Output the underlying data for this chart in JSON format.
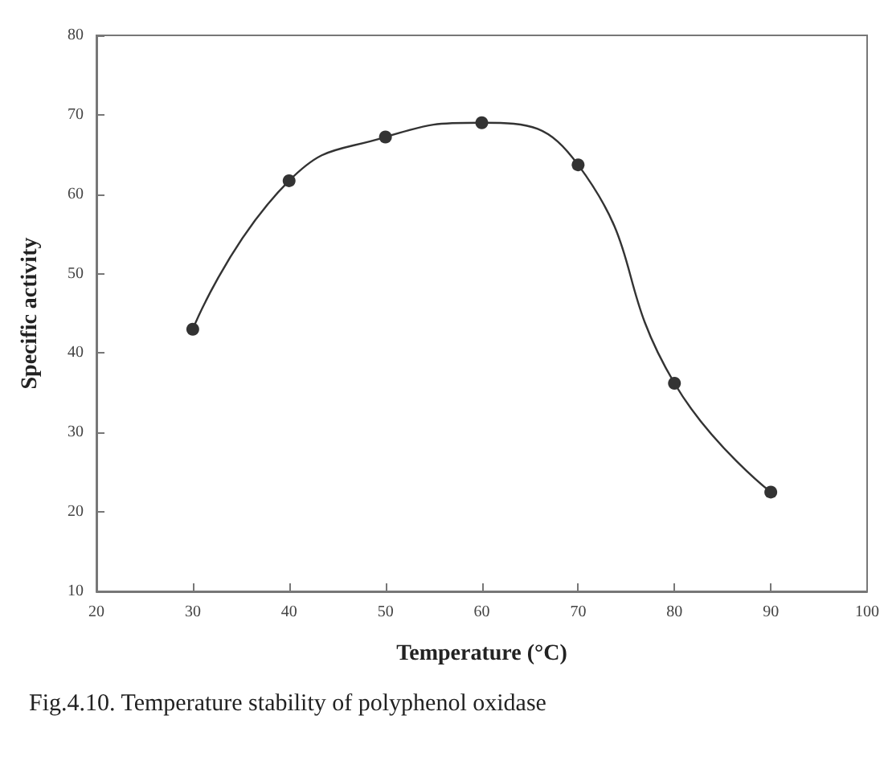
{
  "chart_data": {
    "type": "line",
    "xlabel": "Temperature (°C)",
    "ylabel": "Specific activity",
    "x": [
      30,
      40,
      50,
      60,
      70,
      80,
      90
    ],
    "series": [
      {
        "color": "#333333",
        "values": [
          43,
          61.7,
          67.2,
          69,
          63.7,
          36.2,
          22.5
        ]
      }
    ],
    "xlim": [
      20,
      100
    ],
    "xticks": [
      20,
      30,
      40,
      50,
      60,
      70,
      80,
      90,
      100
    ],
    "ylim": [
      10,
      80
    ],
    "yticks": [
      10,
      20,
      30,
      40,
      50,
      60,
      70,
      80
    ],
    "grid": false,
    "marker": "circle",
    "line_style": "solid",
    "annotations": [
      "Fig.4.10. Temperature stability of polyphenol oxidase"
    ]
  }
}
